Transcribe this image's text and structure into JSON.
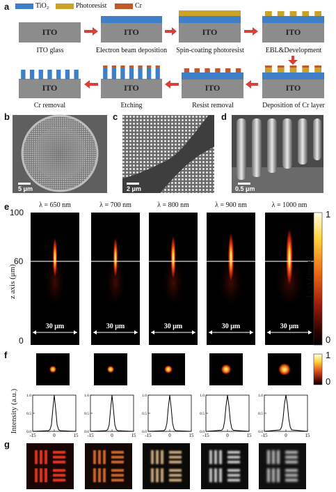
{
  "panel_labels": {
    "a": "a",
    "b": "b",
    "c": "c",
    "d": "d",
    "e": "e",
    "f": "f",
    "g": "g"
  },
  "legend": [
    {
      "name": "TiO₂",
      "color": "#3f7fc8"
    },
    {
      "name": "Photoresist",
      "color": "#c9a227"
    },
    {
      "name": "Cr",
      "color": "#c0582a"
    }
  ],
  "colors": {
    "ito": "#8c8c8c",
    "tio2": "#3f7fc8",
    "resist": "#c9a227",
    "cr": "#c0582a",
    "arrow": "#d9403a"
  },
  "ito_text": "ITO",
  "steps": [
    {
      "label": "ITO glass"
    },
    {
      "label": "Electron beam deposition"
    },
    {
      "label": "Spin-coating photoresist"
    },
    {
      "label": "EBL&Development"
    },
    {
      "label": "Deposition of Cr layer"
    },
    {
      "label": "Resist removal"
    },
    {
      "label": "Etching"
    },
    {
      "label": "Cr removal"
    }
  ],
  "scalebars": {
    "b": "5 μm",
    "c": "2 μm",
    "d": "0.5 μm"
  },
  "panel_e": {
    "wavelengths": [
      "λ = 650 nm",
      "λ = 700 nm",
      "λ = 800 nm",
      "λ = 900 nm",
      "λ = 1000 nm"
    ],
    "width_label": "30 μm",
    "ylabel": "z axis (μm)",
    "yticks": [
      "100",
      "60",
      "0"
    ],
    "colorbar_label": "Intensity (a.u.)",
    "colorbar_ticks": [
      "1",
      "0"
    ]
  },
  "panel_f": {
    "colorbar_ticks": [
      "1",
      "0"
    ],
    "ylabel": "Intensity (a.u.)",
    "yticks": [
      "1.0",
      "0.5",
      "0.0"
    ],
    "xticks": [
      "-15",
      "0",
      "15"
    ]
  },
  "chart_data": [
    {
      "type": "line",
      "title": "",
      "xlabel": "",
      "ylabel": "Intensity (a.u.)",
      "xlim": [
        -15,
        15
      ],
      "ylim": [
        0,
        1
      ],
      "x": [
        -15,
        -4,
        -3,
        -2,
        -1,
        0,
        1,
        2,
        3,
        4,
        15
      ],
      "series": [
        {
          "values": [
            0,
            0.02,
            0.05,
            0.18,
            0.6,
            1.0,
            0.6,
            0.18,
            0.05,
            0.02,
            0
          ]
        },
        {
          "values": [
            0,
            0.02,
            0.05,
            0.18,
            0.6,
            1.0,
            0.6,
            0.18,
            0.05,
            0.02,
            0
          ]
        },
        {
          "values": [
            0,
            0.02,
            0.06,
            0.22,
            0.65,
            1.0,
            0.65,
            0.22,
            0.06,
            0.02,
            0
          ]
        },
        {
          "values": [
            0,
            0.03,
            0.08,
            0.28,
            0.7,
            1.0,
            0.7,
            0.28,
            0.08,
            0.03,
            0
          ]
        },
        {
          "values": [
            0,
            0.04,
            0.12,
            0.35,
            0.75,
            1.0,
            0.75,
            0.35,
            0.12,
            0.04,
            0
          ]
        }
      ]
    }
  ]
}
